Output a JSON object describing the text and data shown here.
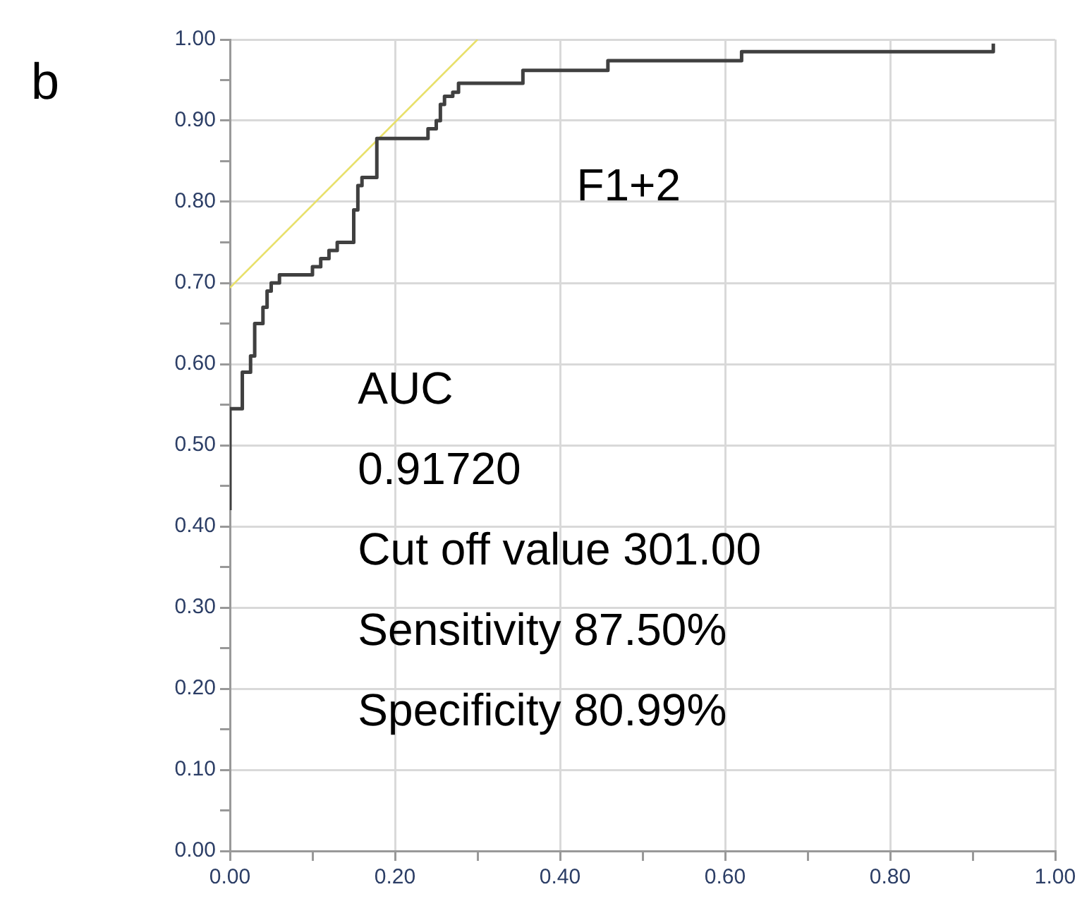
{
  "chart_data": {
    "type": "step",
    "x": [
      0,
      0,
      0.015,
      0.015,
      0.025,
      0.025,
      0.03,
      0.04,
      0.045,
      0.05,
      0.06,
      0.09,
      0.1,
      0.11,
      0.12,
      0.13,
      0.15,
      0.15,
      0.155,
      0.16,
      0.178,
      0.178,
      0.23,
      0.24,
      0.25,
      0.255,
      0.26,
      0.27,
      0.277,
      0.35,
      0.355,
      0.453,
      0.458,
      0.614,
      0.62,
      0.925,
      0.925
    ],
    "series": [
      {
        "color": "#404040",
        "values": [
          0.42,
          0.545,
          0.545,
          0.59,
          0.59,
          0.61,
          0.65,
          0.67,
          0.69,
          0.7,
          0.71,
          0.71,
          0.72,
          0.73,
          0.74,
          0.75,
          0.75,
          0.79,
          0.82,
          0.83,
          0.83,
          0.878,
          0.878,
          0.89,
          0.9,
          0.92,
          0.93,
          0.935,
          0.946,
          0.946,
          0.962,
          0.962,
          0.974,
          0.974,
          0.985,
          0.985,
          0.995
        ]
      },
      {
        "type": "line",
        "color": "#e8e06a",
        "x": [
          0,
          0.3
        ],
        "values": [
          0.694,
          1.0
        ]
      }
    ],
    "xlim": [
      0,
      1
    ],
    "ylim": [
      0,
      1
    ],
    "xticks": [
      {
        "value": 0,
        "label": "0.00"
      },
      {
        "value": 0.1,
        "label": null
      },
      {
        "value": 0.2,
        "label": "0.20"
      },
      {
        "value": 0.3,
        "label": null
      },
      {
        "value": 0.4,
        "label": "0.40"
      },
      {
        "value": 0.5,
        "label": null
      },
      {
        "value": 0.6,
        "label": "0.60"
      },
      {
        "value": 0.7,
        "label": null
      },
      {
        "value": 0.8,
        "label": "0.80"
      },
      {
        "value": 0.9,
        "label": null
      },
      {
        "value": 1,
        "label": "1.00"
      }
    ],
    "yticks": [
      {
        "value": 0,
        "label": "0.00"
      },
      {
        "value": 0.05,
        "label": null
      },
      {
        "value": 0.1,
        "label": "0.10"
      },
      {
        "value": 0.15,
        "label": null
      },
      {
        "value": 0.2,
        "label": "0.20"
      },
      {
        "value": 0.25,
        "label": null
      },
      {
        "value": 0.3,
        "label": "0.30"
      },
      {
        "value": 0.35,
        "label": null
      },
      {
        "value": 0.4,
        "label": "0.40"
      },
      {
        "value": 0.45,
        "label": null
      },
      {
        "value": 0.5,
        "label": "0.50"
      },
      {
        "value": 0.55,
        "label": null
      },
      {
        "value": 0.6,
        "label": "0.60"
      },
      {
        "value": 0.65,
        "label": null
      },
      {
        "value": 0.7,
        "label": "0.70"
      },
      {
        "value": 0.75,
        "label": null
      },
      {
        "value": 0.8,
        "label": "0.80"
      },
      {
        "value": 0.85,
        "label": null
      },
      {
        "value": 0.9,
        "label": "0.90"
      },
      {
        "value": 0.95,
        "label": null
      },
      {
        "value": 1,
        "label": "1.00"
      }
    ],
    "grid": true,
    "legend": false,
    "marker": "none",
    "line_style": "solid",
    "annotations": [
      "b",
      "F1+2",
      "AUC",
      "0.91720",
      "Cut off value 301.00",
      "Sensitivity 87.50%",
      "Specificity 80.99%"
    ]
  }
}
